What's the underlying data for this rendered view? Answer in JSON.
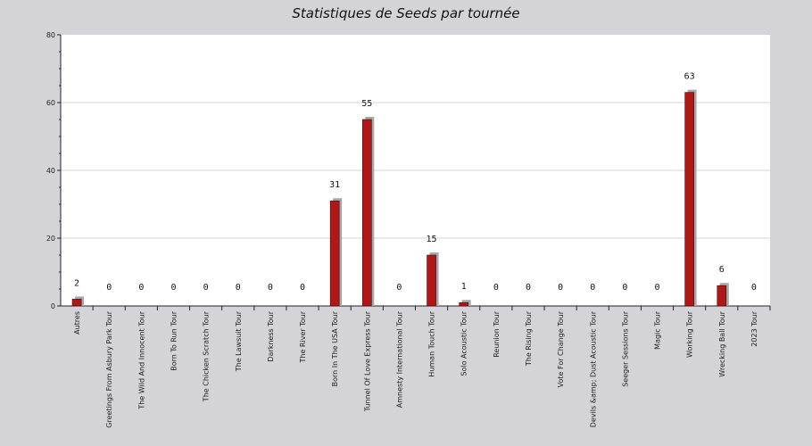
{
  "chart_data": {
    "type": "bar",
    "title": "Statistiques de Seeds par tournée",
    "xlabel": "",
    "ylabel": "",
    "ylim": [
      0,
      80
    ],
    "yticks": [
      0,
      20,
      40,
      60,
      80
    ],
    "grid": true,
    "bar_color": "#b01818",
    "shadow_color": "#a8a8a8",
    "categories": [
      "Autres",
      "Greetings From Asbury Park Tour",
      "The Wild And Innocent Tour",
      "Born To Run Tour",
      "The Chicken Scratch Tour",
      "The Lawsuit Tour",
      "Darkness Tour",
      "The River Tour",
      "Born In The USA Tour",
      "Tunnel Of Love Express Tour",
      "Amnesty International Tour",
      "Human Touch Tour",
      "Solo Acoustic Tour",
      "Reunion Tour",
      "The Rising Tour",
      "Vote For Change Tour",
      "Devils &amp; Dust Acoustic Tour",
      "Seeger Sessions Tour",
      "Magic Tour",
      "Working Tour",
      "Wrecking Ball Tour",
      "2023 Tour"
    ],
    "values": [
      2,
      0,
      0,
      0,
      0,
      0,
      0,
      0,
      31,
      55,
      0,
      15,
      1,
      0,
      0,
      0,
      0,
      0,
      0,
      63,
      6,
      0
    ]
  }
}
